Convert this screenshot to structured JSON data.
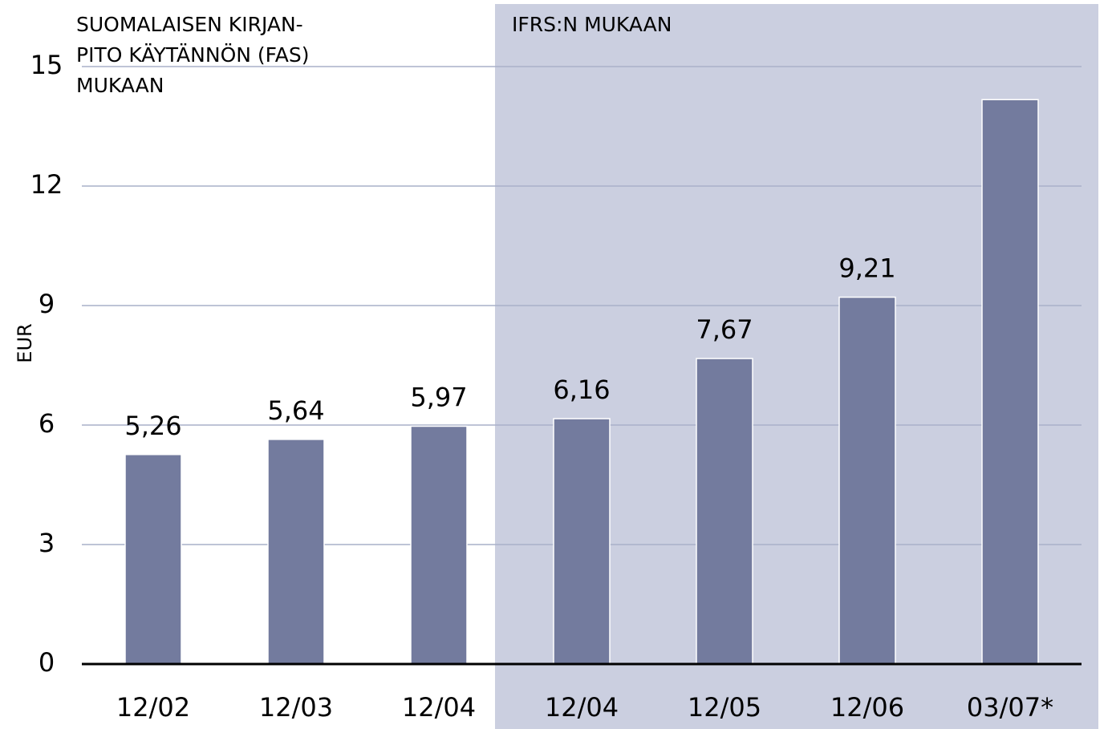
{
  "chart_data": {
    "type": "bar",
    "y_label": "EUR",
    "annotations": [
      "SUOMALAISEN KIRJAN-",
      "PITO KÄYTÄNNÖN (FAS)",
      "MUKAAN",
      "IFRS:N MUKAAN"
    ],
    "categories": [
      "12/02",
      "12/03",
      "12/04",
      "12/04",
      "12/05",
      "12/06",
      "03/07*"
    ],
    "values": [
      5.26,
      5.64,
      5.97,
      6.16,
      7.67,
      9.21,
      14.17
    ],
    "value_labels": [
      "5,26",
      "5,64",
      "5,97",
      "6,16",
      "7,67",
      "9,21",
      null
    ],
    "color": "#737b9e",
    "ylim": [
      0,
      15
    ],
    "yticks": [
      0,
      3,
      6,
      9,
      12,
      15
    ],
    "grid": true
  }
}
